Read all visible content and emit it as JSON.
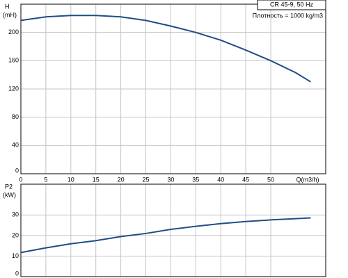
{
  "chart_data": [
    {
      "type": "line",
      "title": "CR 45-9, 50 Hz",
      "subtitle": "Плотность = 1000 kg/m3",
      "ylabel": "H",
      "ylabel_unit": "(mH)",
      "xlabel": "Q(m3/h)",
      "x": [
        0,
        5,
        10,
        15,
        20,
        25,
        30,
        35,
        40,
        45,
        50,
        55,
        58
      ],
      "series": [
        {
          "name": "H",
          "color": "#1f4e85",
          "values": [
            217,
            222,
            224,
            224,
            222,
            217,
            209,
            200,
            189,
            175,
            160,
            143,
            130
          ]
        }
      ],
      "xlim": [
        0,
        61
      ],
      "xticks": [
        0,
        5,
        10,
        15,
        20,
        25,
        30,
        35,
        40,
        45,
        50
      ],
      "ylim": [
        0,
        240
      ],
      "yticks": [
        0,
        40,
        80,
        120,
        160,
        200
      ],
      "grid": true
    },
    {
      "type": "line",
      "ylabel": "P2",
      "ylabel_unit": "(kW)",
      "x": [
        0,
        5,
        10,
        15,
        20,
        25,
        30,
        35,
        40,
        45,
        50,
        55,
        58
      ],
      "series": [
        {
          "name": "P2",
          "color": "#1f4e85",
          "values": [
            11.7,
            14,
            16,
            17.5,
            19.5,
            21,
            23,
            24.5,
            25.8,
            26.8,
            27.6,
            28.2,
            28.6
          ]
        }
      ],
      "xlim": [
        0,
        61
      ],
      "xticks": [
        0,
        5,
        10,
        15,
        20,
        25,
        30,
        35,
        40,
        45,
        50
      ],
      "ylim": [
        0,
        45
      ],
      "yticks": [
        0,
        10,
        20,
        30
      ],
      "grid": true
    }
  ]
}
